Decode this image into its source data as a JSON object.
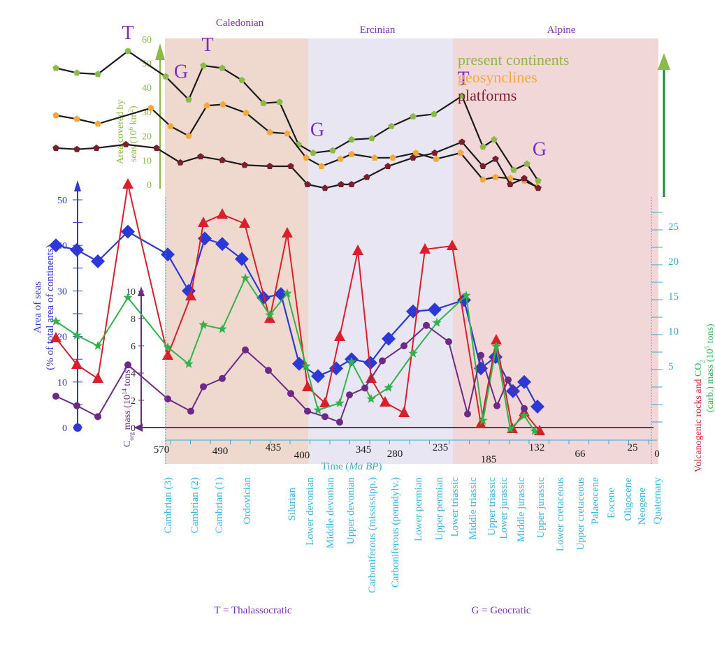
{
  "colors": {
    "caledonian_band": "#efd9cf",
    "ercinian_band": "#e9e6f3",
    "alpine_band": "#f1d7d7",
    "present_continents": "#8db84a",
    "geosynclines": "#f2a93b",
    "platforms": "#7a1f2e",
    "area_seas": "#2c39d6",
    "volcanic": "#d9202a",
    "co2": "#2fb34a",
    "corg": "#6c2a86",
    "purple_text": "#7a2fc0",
    "cyan_text": "#35b8e6",
    "upper_axis": "#8db84a",
    "right_axis": "#3aa9c9"
  },
  "orogenies": [
    "Caledonian",
    "Ercinian",
    "Alpine"
  ],
  "time_axis": {
    "label_prefix": "Time (",
    "label_italic": "Ma BP",
    "label_suffix": ")",
    "ticks": [
      "570",
      "490",
      "435",
      "400",
      "345",
      "280",
      "235",
      "185",
      "132",
      "66",
      "25",
      "0"
    ]
  },
  "periods": [
    "Cambrian (3)",
    "Cambrian (2)",
    "Cambrian (1)",
    "Ordovician",
    "Silurian",
    "Lower devonian",
    "Middle devonian",
    "Upper devonian",
    "Carboniferous (mississipp.)",
    "Carboniferous (penndylv.)",
    "Lower permian",
    "Upper permian",
    "Lower triassic",
    "Middle triassic",
    "Upper triassic",
    "Lower jurassic",
    "Middle jurassic",
    "Upper jurassic",
    "Lower cretaceous",
    "Upper cretaceous",
    "Palaeocene",
    "Eocene",
    "Oligocene",
    "Neogene",
    "Quaternary"
  ],
  "footnotes": {
    "thalassocratic": "T = Thalassocratic",
    "geocratic": "G = Geocratic"
  },
  "chart_data": [
    {
      "type": "line",
      "ylabel_line1": "Area covered by",
      "ylabel_line2": "seas (10",
      "ylabel_sup": "6",
      "ylabel_suffix": " km",
      "ylabel_sup2": "2",
      "ylabel_end": ")",
      "yticks": [
        "60",
        "50",
        "40",
        "30",
        "20",
        "10",
        "0"
      ],
      "ylim": [
        0,
        65
      ],
      "legend": [
        "present continents",
        "geosynclines",
        "platforms"
      ],
      "series": [
        {
          "name": "present continents",
          "points": [
            [
              80,
              48
            ],
            [
              110,
              46
            ],
            [
              140,
              45.5
            ],
            [
              183,
              55
            ],
            [
              237,
              44.5
            ],
            [
              270,
              35
            ],
            [
              291,
              49
            ],
            [
              318,
              48
            ],
            [
              346,
              43
            ],
            [
              377,
              33.5
            ],
            [
              400,
              34
            ],
            [
              427,
              16.5
            ],
            [
              448,
              13
            ],
            [
              476,
              14
            ],
            [
              503,
              18.5
            ],
            [
              532,
              19
            ],
            [
              560,
              24
            ],
            [
              591,
              28
            ],
            [
              621,
              29
            ],
            [
              661,
              36.5
            ],
            [
              691,
              15.5
            ],
            [
              707,
              18.5
            ],
            [
              735,
              6
            ],
            [
              754,
              8.5
            ],
            [
              770,
              1.5
            ]
          ]
        },
        {
          "name": "geosynclines",
          "points": [
            [
              80,
              28.5
            ],
            [
              110,
              27
            ],
            [
              140,
              25
            ],
            [
              216,
              31.5
            ],
            [
              244,
              24
            ],
            [
              270,
              20
            ],
            [
              296,
              32.5
            ],
            [
              319,
              33
            ],
            [
              352,
              29.5
            ],
            [
              386,
              21.5
            ],
            [
              411,
              21
            ],
            [
              438,
              11
            ],
            [
              460,
              7.5
            ],
            [
              487,
              10.5
            ],
            [
              503,
              12.5
            ],
            [
              536,
              11
            ],
            [
              562,
              11
            ],
            [
              595,
              13
            ],
            [
              624,
              10.5
            ],
            [
              659,
              13
            ],
            [
              691,
              2
            ],
            [
              709,
              3
            ],
            [
              730,
              2.5
            ],
            [
              750,
              1.5
            ],
            [
              768,
              -1
            ]
          ]
        },
        {
          "name": "platforms",
          "points": [
            [
              80,
              15
            ],
            [
              110,
              14.5
            ],
            [
              138,
              15
            ],
            [
              180,
              16.5
            ],
            [
              224,
              15
            ],
            [
              258,
              9
            ],
            [
              287,
              11.5
            ],
            [
              318,
              10
            ],
            [
              350,
              8
            ],
            [
              386,
              7.5
            ],
            [
              416,
              7.5
            ],
            [
              440,
              0
            ],
            [
              465,
              -1.5
            ],
            [
              488,
              0
            ],
            [
              503,
              0
            ],
            [
              525,
              3
            ],
            [
              555,
              7.5
            ],
            [
              591,
              11
            ],
            [
              622,
              13
            ],
            [
              661,
              17.5
            ],
            [
              691,
              7.5
            ],
            [
              709,
              10.5
            ],
            [
              730,
              0
            ],
            [
              750,
              2.5
            ],
            [
              770,
              -1.5
            ]
          ]
        }
      ],
      "annotations": [
        {
          "text": "T",
          "x": 183,
          "y": 60
        },
        {
          "text": "G",
          "x": 259,
          "y": 44
        },
        {
          "text": "T",
          "x": 297,
          "y": 55
        },
        {
          "text": "G",
          "x": 454,
          "y": 20
        },
        {
          "text": "T",
          "x": 663,
          "y": 41
        },
        {
          "text": "G",
          "x": 772,
          "y": 12
        }
      ]
    },
    {
      "type": "line",
      "left_axis_label_line1": "Area of seas",
      "left_axis_label_line2": "(% of total area of continents)",
      "left_ticks": [
        "50",
        "40",
        "30",
        "20",
        "10",
        "0"
      ],
      "left_ylim": [
        0,
        50
      ],
      "corg_label_prefix": "C",
      "corg_label_sub": "org",
      "corg_label_suffix": " mass (10",
      "corg_label_sup": "14",
      "corg_label_end": " tons)",
      "corg_ticks": [
        "10",
        "8",
        "6",
        "4",
        "2",
        "0"
      ],
      "corg_ylim": [
        0,
        10
      ],
      "right_axis_label_red": "Volcanogenic rocks",
      "right_axis_label_and": " and ",
      "right_axis_label_green": "CO",
      "right_axis_label_green_sub": "2",
      "right_axis_label_line2": "(carb.) mass (10",
      "right_axis_label_line2_sup": "5",
      "right_axis_label_line2_end": " tons)",
      "right_ticks": [
        "25",
        "20",
        "15",
        "10",
        "5"
      ],
      "right_ylim": [
        -4.3,
        27.7
      ],
      "series": [
        {
          "name": "area of seas",
          "points": [
            [
              80,
              40
            ],
            [
              110,
              39
            ],
            [
              140,
              36.5
            ],
            [
              183,
              43
            ],
            [
              240,
              38
            ],
            [
              270,
              30
            ],
            [
              293,
              41.5
            ],
            [
              318,
              40.3
            ],
            [
              346,
              37
            ],
            [
              377,
              28.5
            ],
            [
              402,
              29.3
            ],
            [
              428,
              14
            ],
            [
              455,
              11.3
            ],
            [
              481,
              13
            ],
            [
              503,
              15
            ],
            [
              530,
              14.2
            ],
            [
              556,
              19.5
            ],
            [
              591,
              25.5
            ],
            [
              622,
              25.9
            ],
            [
              664,
              28
            ],
            [
              688,
              13
            ],
            [
              709,
              15.5
            ],
            [
              734,
              8
            ],
            [
              750,
              10
            ],
            [
              769,
              4.6
            ]
          ]
        },
        {
          "name": "volcanogenic rocks",
          "points": [
            [
              80,
              9
            ],
            [
              110,
              5.2
            ],
            [
              140,
              3.2
            ],
            [
              183,
              31
            ],
            [
              240,
              6.5
            ],
            [
              273,
              15
            ],
            [
              291,
              25.5
            ],
            [
              318,
              26.7
            ],
            [
              350,
              25.4
            ],
            [
              386,
              11.8
            ],
            [
              411,
              24
            ],
            [
              440,
              2
            ],
            [
              465,
              -0.3
            ],
            [
              486,
              9.2
            ],
            [
              512,
              21.5
            ],
            [
              531,
              3.2
            ],
            [
              551,
              -0.2
            ],
            [
              578,
              -1.7
            ],
            [
              608,
              21.7
            ],
            [
              647,
              22.2
            ],
            [
              688,
              -3.3
            ],
            [
              710,
              8.7
            ],
            [
              733,
              -4
            ],
            [
              750,
              -1.6
            ],
            [
              772,
              -4.3
            ]
          ]
        },
        {
          "name": "co2 carb",
          "points": [
            [
              80,
              11.4
            ],
            [
              110,
              9.4
            ],
            [
              140,
              7.9
            ],
            [
              183,
              14.8
            ],
            [
              240,
              7.7
            ],
            [
              270,
              5.3
            ],
            [
              291,
              10.9
            ],
            [
              318,
              10.3
            ],
            [
              351,
              17.6
            ],
            [
              386,
              12.3
            ],
            [
              411,
              15.4
            ],
            [
              438,
              5
            ],
            [
              455,
              -1.3
            ],
            [
              486,
              -0.3
            ],
            [
              503,
              5.6
            ],
            [
              531,
              0.3
            ],
            [
              556,
              1.9
            ],
            [
              591,
              6.8
            ],
            [
              625,
              11.2
            ],
            [
              667,
              15.1
            ],
            [
              691,
              -2.8
            ],
            [
              710,
              7.8
            ],
            [
              730,
              -4
            ],
            [
              750,
              -2.1
            ],
            [
              765,
              -4.3
            ]
          ]
        },
        {
          "name": "corg mass",
          "points": [
            [
              80,
              2.3
            ],
            [
              110,
              1.6
            ],
            [
              140,
              0.8
            ],
            [
              183,
              4.6
            ],
            [
              240,
              2.1
            ],
            [
              273,
              1.2
            ],
            [
              291,
              3.0
            ],
            [
              318,
              3.6
            ],
            [
              351,
              5.7
            ],
            [
              384,
              4.2
            ],
            [
              416,
              2.5
            ],
            [
              440,
              1.2
            ],
            [
              465,
              0.8
            ],
            [
              486,
              0.4
            ],
            [
              500,
              2.4
            ],
            [
              522,
              2.9
            ],
            [
              547,
              4.9
            ],
            [
              578,
              6.0
            ],
            [
              610,
              7.5
            ],
            [
              642,
              6.3
            ],
            [
              669,
              1.0
            ],
            [
              688,
              5.3
            ],
            [
              711,
              1.6
            ],
            [
              727,
              3.5
            ],
            [
              750,
              1.4
            ]
          ]
        }
      ]
    }
  ]
}
